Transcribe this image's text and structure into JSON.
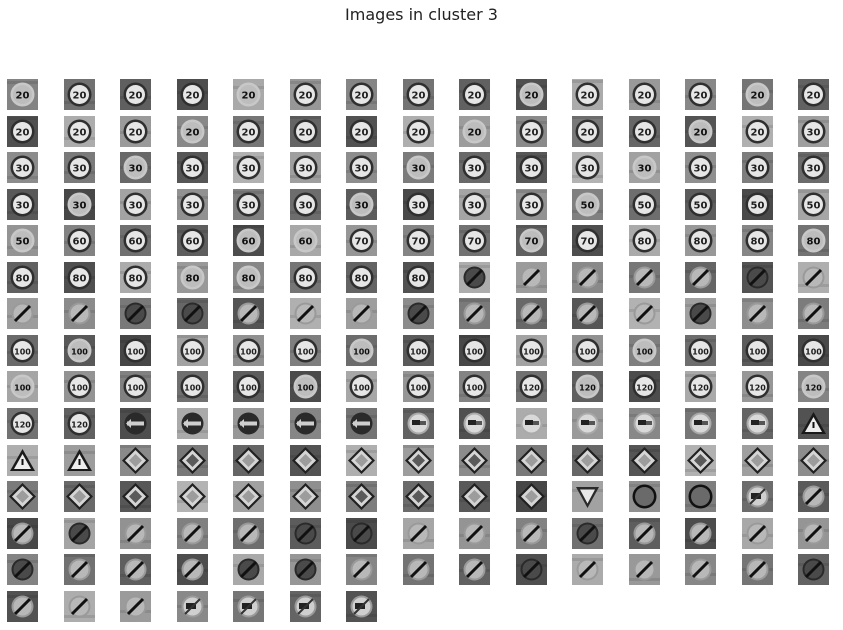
{
  "figure": {
    "title": "Images in cluster 3"
  },
  "thumbnails": [
    "20",
    "20",
    "20",
    "20",
    "20",
    "20",
    "20",
    "20",
    "20",
    "20",
    "20",
    "20",
    "20",
    "20",
    "20",
    "20",
    "20",
    "20",
    "20",
    "20",
    "20",
    "20",
    "20",
    "20",
    "20",
    "20",
    "20",
    "20",
    "20",
    "30",
    "30",
    "30",
    "30",
    "30",
    "30",
    "30",
    "30",
    "30",
    "30",
    "30",
    "30",
    "30",
    "30",
    "30",
    "30",
    "30",
    "30",
    "30",
    "30",
    "30",
    "30",
    "30",
    "30",
    "30",
    "30",
    "50",
    "50",
    "50",
    "50",
    "50",
    "50",
    "60",
    "60",
    "60",
    "60",
    "60",
    "70",
    "70",
    "70",
    "70",
    "70",
    "80",
    "80",
    "80",
    "80",
    "80",
    "80",
    "80",
    "80",
    "80",
    "80",
    "80",
    "80",
    "end",
    "end",
    "end",
    "end",
    "end",
    "end",
    "end",
    "end",
    "end",
    "end",
    "end",
    "end",
    "end",
    "end",
    "end",
    "end",
    "end",
    "end",
    "end",
    "end",
    "end",
    "end",
    "100",
    "100",
    "100",
    "100",
    "100",
    "100",
    "100",
    "100",
    "100",
    "100",
    "100",
    "100",
    "100",
    "100",
    "100",
    "100",
    "100",
    "100",
    "100",
    "100",
    "100",
    "100",
    "100",
    "100",
    "120",
    "120",
    "120",
    "120",
    "120",
    "120",
    "120",
    "120",
    "arrow",
    "arrow",
    "arrow",
    "arrow",
    "arrow",
    "car",
    "car",
    "car",
    "car",
    "car",
    "car",
    "car",
    "tri",
    "tri",
    "tri",
    "dia",
    "dia",
    "dia",
    "dia",
    "dia",
    "dia",
    "dia",
    "dia",
    "dia",
    "dia",
    "dia",
    "dia",
    "dia",
    "dia",
    "dia",
    "dia",
    "dia",
    "dia",
    "dia",
    "dia",
    "dia",
    "dia",
    "dia",
    "yield",
    "circ",
    "circ",
    "truck",
    "end",
    "end",
    "end",
    "end",
    "end",
    "end",
    "end",
    "end",
    "end",
    "end",
    "end",
    "end",
    "end",
    "end",
    "end",
    "end",
    "end",
    "end",
    "end",
    "end",
    "end",
    "end",
    "end",
    "end",
    "end",
    "end",
    "end",
    "end",
    "end",
    "end",
    "end",
    "end",
    "end",
    "end",
    "truck",
    "truck",
    "truck",
    "truck"
  ],
  "styles": {
    "background": "#ffffff",
    "title_color": "#222222"
  }
}
